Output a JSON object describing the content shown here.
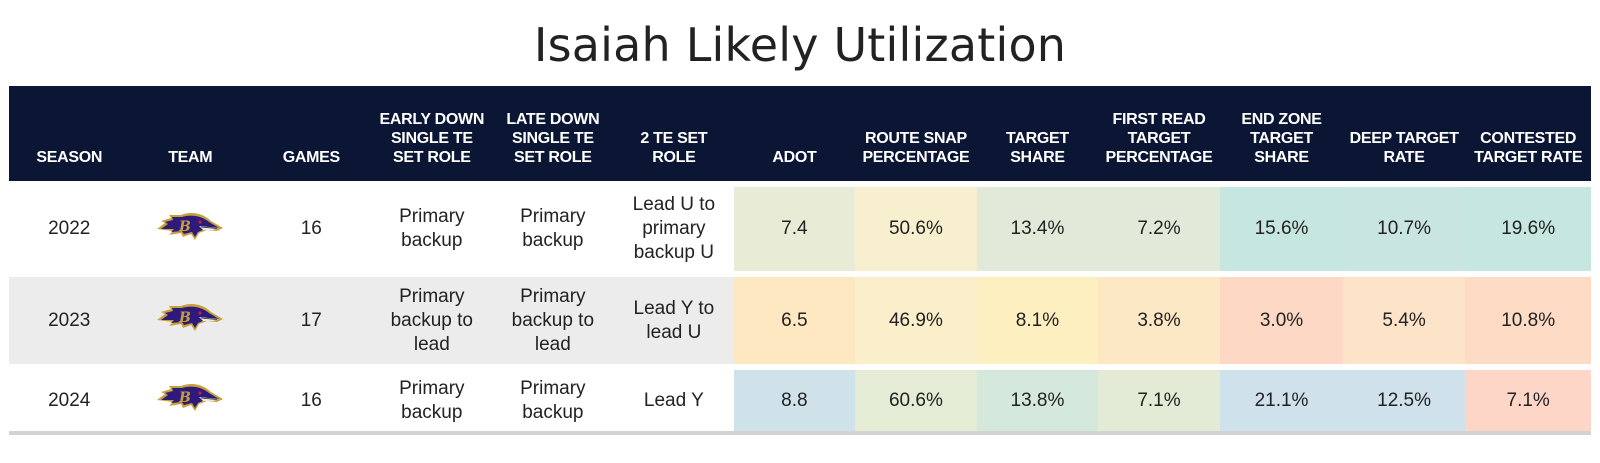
{
  "title": "Isaiah Likely Utilization",
  "chart_data": {
    "type": "table",
    "title": "Isaiah Likely Utilization",
    "columns": [
      "SEASON",
      "TEAM",
      "GAMES",
      "EARLY DOWN SINGLE TE SET ROLE",
      "LATE DOWN SINGLE TE SET ROLE",
      "2 TE SET ROLE",
      "ADOT",
      "ROUTE SNAP PERCENTAGE",
      "TARGET SHARE",
      "FIRST READ TARGET PERCENTAGE",
      "END ZONE TARGET SHARE",
      "DEEP TARGET RATE",
      "CONTESTED TARGET RATE"
    ],
    "rows": [
      {
        "season": "2022",
        "team": "Baltimore Ravens (logo)",
        "games": "16",
        "early_down_role": "Primary backup",
        "late_down_role": "Primary backup",
        "two_te_role": "Lead U to primary backup U",
        "metrics": [
          "7.4",
          "50.6%",
          "13.4%",
          "7.2%",
          "15.6%",
          "10.7%",
          "19.6%"
        ],
        "metric_colors": [
          "#e8ebd6",
          "#f7efcd",
          "#e1ead9",
          "#e1ead9",
          "#c6e6e0",
          "#c9e5e1",
          "#c6e6e0"
        ]
      },
      {
        "season": "2023",
        "team": "Baltimore Ravens (logo)",
        "games": "17",
        "early_down_role": "Primary backup to lead",
        "late_down_role": "Primary backup to lead",
        "two_te_role": "Lead Y to lead U",
        "metrics": [
          "6.5",
          "46.9%",
          "8.1%",
          "3.8%",
          "3.0%",
          "5.4%",
          "10.8%"
        ],
        "metric_colors": [
          "#fde8c2",
          "#fbefcb",
          "#fdefc0",
          "#fde8c6",
          "#fdd8c4",
          "#fde3c8",
          "#fddbc4"
        ]
      },
      {
        "season": "2024",
        "team": "Baltimore Ravens (logo)",
        "games": "16",
        "early_down_role": "Primary backup",
        "late_down_role": "Primary backup",
        "two_te_role": "Lead Y",
        "metrics": [
          "8.8",
          "60.6%",
          "13.8%",
          "7.1%",
          "21.1%",
          "12.5%",
          "7.1%"
        ],
        "metric_colors": [
          "#cfe1e9",
          "#e4ecd6",
          "#d4e8dc",
          "#e3ebd6",
          "#cfe1ea",
          "#cfe1ea",
          "#fdd6c8"
        ]
      }
    ]
  },
  "header": {
    "season": "SEASON",
    "team": "TEAM",
    "games": "GAMES",
    "early_down": "EARLY DOWN SINGLE TE SET ROLE",
    "late_down": "LATE DOWN SINGLE TE SET ROLE",
    "two_te": "2 TE SET ROLE",
    "adot": "ADOT",
    "route_snap": "ROUTE SNAP PERCENTAGE",
    "target_share": "TARGET SHARE",
    "first_read": "FIRST READ TARGET PERCENTAGE",
    "end_zone": "END ZONE TARGET SHARE",
    "deep": "DEEP TARGET RATE",
    "contested": "CONTESTED TARGET RATE"
  },
  "team_logo_icon": "baltimore-ravens-logo-icon",
  "colors": {
    "header_bg": "#0b1534",
    "header_text": "#ffffff",
    "alt_row_bg": "#ececec"
  }
}
